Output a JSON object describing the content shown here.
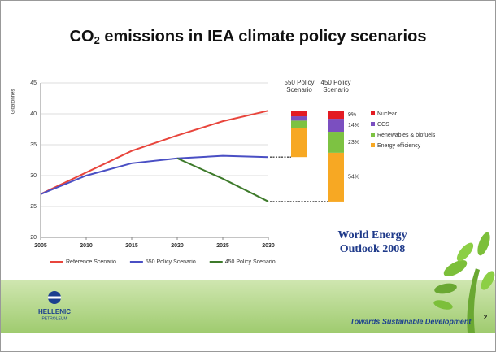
{
  "slide": {
    "title_main": "CO",
    "title_sub": "2",
    "title_rest": " emissions in IEA climate policy scenarios",
    "weo_line1": "World Energy",
    "weo_line2": "Outlook 2008",
    "logo_line1": "HELLENIC",
    "logo_line2": "PETROLEUM",
    "slogan": "Towards Sustainable Development",
    "page_number": "2"
  },
  "chart_data": {
    "type": "line",
    "y_label": "Gigatonnes",
    "x": [
      2005,
      2010,
      2015,
      2020,
      2025,
      2030
    ],
    "xlim": [
      2005,
      2030
    ],
    "xticks": [
      2005,
      2010,
      2015,
      2020,
      2025,
      2030
    ],
    "ylim": [
      20,
      45
    ],
    "yticks": [
      20,
      25,
      30,
      35,
      40,
      45
    ],
    "grid": true,
    "series": [
      {
        "name": "Reference Scenario",
        "color": "#e8453c",
        "values": [
          27,
          30.5,
          34,
          36.5,
          38.8,
          40.5
        ]
      },
      {
        "name": "550 Policy Scenario",
        "color": "#4a4fc4",
        "values": [
          27,
          30,
          32,
          32.8,
          33.2,
          33
        ]
      },
      {
        "name": "450 Policy Scenario",
        "color": "#3d7a2a",
        "values": [
          null,
          null,
          null,
          32.8,
          29.5,
          25.8
        ]
      }
    ],
    "stack_categories": [
      "Nuclear",
      "CCS",
      "Renewables & biofuels",
      "Energy efficiency"
    ],
    "stack_colors": [
      "#e31b23",
      "#7b4fc0",
      "#7dc242",
      "#f7a823"
    ],
    "stacks": [
      {
        "name": "550 Policy Scenario",
        "values": [
          0.9,
          0.7,
          1.2,
          4.7
        ]
      },
      {
        "name": "450 Policy Scenario",
        "values": [
          1.3,
          2.1,
          3.4,
          7.9
        ],
        "share_labels": [
          "9%",
          "14%",
          "23%",
          "54%"
        ]
      }
    ]
  }
}
